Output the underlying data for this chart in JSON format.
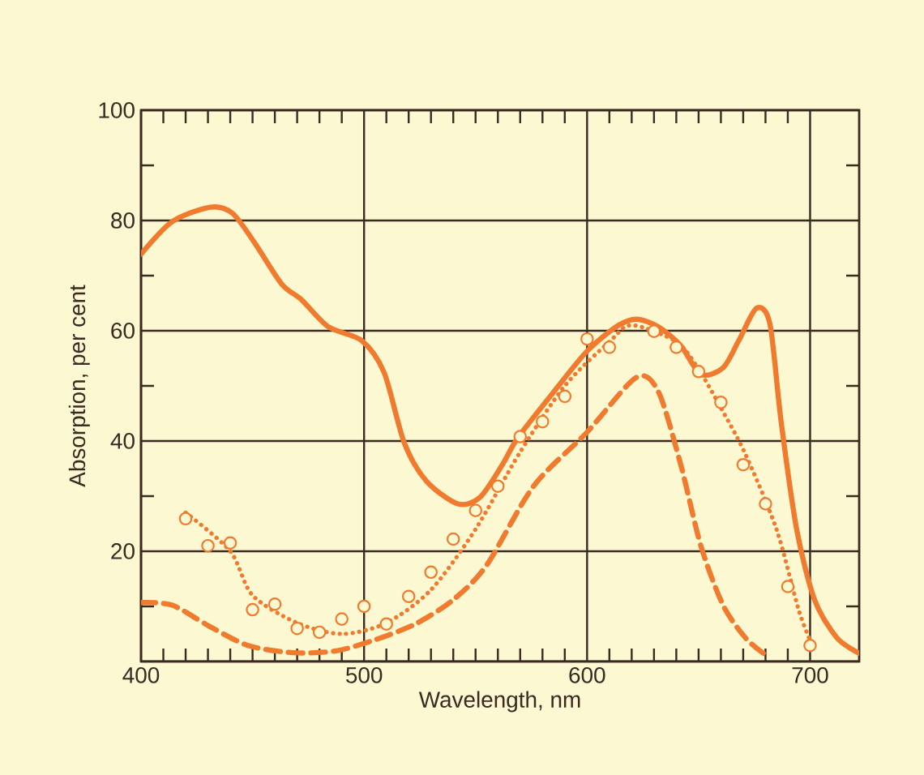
{
  "chart_data": {
    "type": "line",
    "xlabel": "Wavelength, nm",
    "ylabel": "Absorption, per cent",
    "xlim": [
      400,
      722
    ],
    "ylim": [
      0,
      100
    ],
    "xticks": [
      400,
      500,
      600,
      700
    ],
    "yticks": [
      {
        "value": 0,
        "label": null
      },
      20,
      40,
      60,
      80,
      100
    ],
    "grid": true,
    "series": [
      {
        "type": "line",
        "line_style": "solid",
        "color": "#f07a2e",
        "x": [
          400,
          414,
          431,
          441,
          451,
          463,
          472,
          484,
          499,
          509,
          518,
          528,
          542,
          552,
          562,
          569,
          586,
          600,
          613,
          622,
          632,
          642,
          651,
          661,
          668,
          676,
          682,
          687,
          694,
          702,
          712,
          722
        ],
        "values": [
          73.9,
          79.8,
          82.4,
          81.3,
          75.9,
          68.5,
          65.6,
          60.7,
          58.2,
          52.4,
          39.7,
          32.7,
          28.6,
          29.8,
          35.7,
          40.6,
          49.4,
          56.3,
          60.7,
          62.1,
          60.7,
          57.3,
          52.1,
          53.3,
          58.2,
          64.1,
          61.2,
          43.5,
          23.9,
          11.2,
          4.3,
          1.5
        ]
      },
      {
        "type": "line",
        "line_style": "dashed",
        "color": "#f07a2e",
        "x": [
          400,
          414,
          431,
          448,
          468,
          487,
          504,
          523,
          540,
          555,
          576,
          600,
          622,
          632,
          642,
          651,
          661,
          671,
          679
        ],
        "values": [
          10.7,
          10.2,
          6.3,
          2.9,
          1.6,
          1.9,
          3.8,
          6.8,
          11.2,
          17.5,
          31.8,
          41.6,
          51.5,
          48.9,
          35.7,
          21,
          10.2,
          4.3,
          1.5
        ]
      },
      {
        "type": "line",
        "line_style": "dotted",
        "color": "#f07a2e",
        "x": [
          420,
          440,
          450,
          470,
          490,
          510,
          530,
          550,
          570,
          590,
          610,
          620,
          640,
          650,
          660,
          671,
          685,
          695,
          701
        ],
        "values": [
          27,
          20,
          12,
          7,
          5,
          7,
          13,
          24,
          38,
          50,
          58,
          61,
          58,
          53,
          46,
          37.6,
          23.9,
          9.2,
          2.9
        ]
      },
      {
        "type": "scatter",
        "marker": "circle",
        "color": "#f07a2e",
        "x": [
          420,
          430,
          440,
          450,
          460,
          470,
          480,
          490,
          500,
          510,
          520,
          530,
          540,
          550,
          560,
          570,
          580,
          590,
          600,
          610,
          630,
          640,
          650,
          660,
          670,
          680,
          690,
          700
        ],
        "values": [
          25.9,
          21,
          21.5,
          9.4,
          10.4,
          6,
          5.3,
          7.7,
          10,
          6.8,
          11.8,
          16.2,
          22.2,
          27.4,
          31.8,
          40.8,
          43.5,
          48.1,
          58.5,
          57,
          59.9,
          57,
          52.6,
          47,
          35.7,
          28.6,
          13.6,
          2.9
        ]
      }
    ]
  }
}
